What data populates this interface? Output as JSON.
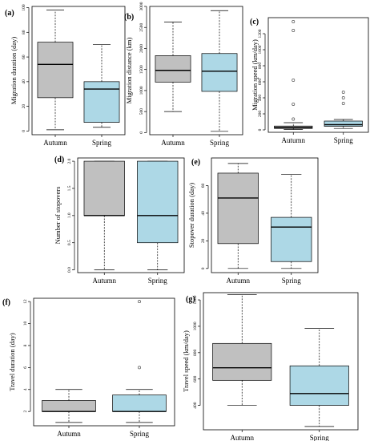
{
  "colors": {
    "autumn": "#c0c0c0",
    "spring": "#add8e6"
  },
  "chart_data": [
    {
      "panel": "(a)",
      "type": "boxplot",
      "ylabel": "Migration duration (day)",
      "categories": [
        "Autumn",
        "Spring"
      ],
      "ylim": [
        -3,
        101
      ],
      "yticks": [
        0,
        20,
        40,
        60,
        80,
        100
      ],
      "boxes": [
        {
          "category": "Autumn",
          "lower_whisker": 1,
          "q1": 27,
          "median": 54,
          "q3": 72,
          "upper_whisker": 98,
          "outliers": []
        },
        {
          "category": "Spring",
          "lower_whisker": 3,
          "q1": 7,
          "median": 34,
          "q3": 40,
          "upper_whisker": 70,
          "outliers": []
        }
      ]
    },
    {
      "panel": "(b)",
      "type": "boxplot",
      "ylabel": "Migration distance (km)",
      "categories": [
        "Autumn",
        "Spring"
      ],
      "ylim": [
        -50,
        3000
      ],
      "yticks": [
        0,
        500,
        1000,
        1500,
        2000,
        2500,
        3000
      ],
      "boxes": [
        {
          "category": "Autumn",
          "lower_whisker": 500,
          "q1": 1200,
          "median": 1480,
          "q3": 1830,
          "upper_whisker": 2630,
          "outliers": []
        },
        {
          "category": "Spring",
          "lower_whisker": 30,
          "q1": 980,
          "median": 1460,
          "q3": 1880,
          "upper_whisker": 2900,
          "outliers": []
        }
      ]
    },
    {
      "panel": "(c)",
      "type": "boxplot",
      "ylabel": "Migration speed (km/day)",
      "categories": [
        "Autumn",
        "Spring"
      ],
      "ylim": [
        -30,
        1400
      ],
      "yticks": [
        0,
        200,
        400,
        600,
        800,
        1000,
        1200
      ],
      "boxes": [
        {
          "category": "Autumn",
          "lower_whisker": 5,
          "q1": 18,
          "median": 30,
          "q3": 48,
          "upper_whisker": 90,
          "outliers": [
            135,
            320,
            620,
            1240,
            1350
          ]
        },
        {
          "category": "Spring",
          "lower_whisker": 18,
          "q1": 45,
          "median": 65,
          "q3": 110,
          "upper_whisker": 130,
          "outliers": [
            330,
            400,
            470
          ]
        }
      ]
    },
    {
      "panel": "(d)",
      "type": "boxplot",
      "ylabel": "Number of stopovers",
      "categories": [
        "Autumn",
        "Spring"
      ],
      "ylim": [
        -0.05,
        2.06
      ],
      "yticks": [
        0.0,
        0.5,
        1.0,
        1.5,
        2.0
      ],
      "ytick_labels": [
        "0.0",
        "0.5",
        "1.0",
        "1.5",
        "2.0"
      ],
      "boxes": [
        {
          "category": "Autumn",
          "lower_whisker": 0,
          "q1": 1,
          "median": 1,
          "q3": 2,
          "upper_whisker": 2,
          "outliers": []
        },
        {
          "category": "Spring",
          "lower_whisker": 0,
          "q1": 0.5,
          "median": 1,
          "q3": 2,
          "upper_whisker": 2,
          "outliers": []
        }
      ]
    },
    {
      "panel": "(e)",
      "type": "boxplot",
      "ylabel": "Stopover duration (day)",
      "categories": [
        "Autumn",
        "Spring"
      ],
      "ylim": [
        -3,
        80
      ],
      "yticks": [
        0,
        20,
        40,
        60
      ],
      "boxes": [
        {
          "category": "Autumn",
          "lower_whisker": 0,
          "q1": 18,
          "median": 51,
          "q3": 69,
          "upper_whisker": 76,
          "outliers": []
        },
        {
          "category": "Spring",
          "lower_whisker": 0,
          "q1": 5,
          "median": 30,
          "q3": 37,
          "upper_whisker": 68,
          "outliers": []
        }
      ]
    },
    {
      "panel": "(f)",
      "type": "boxplot",
      "ylabel": "Travel duration (day)",
      "categories": [
        "Autumn",
        "Spring"
      ],
      "ylim": [
        0.7,
        12.3
      ],
      "yticks": [
        2,
        4,
        6,
        8,
        10,
        12
      ],
      "boxes": [
        {
          "category": "Autumn",
          "lower_whisker": 1,
          "q1": 2,
          "median": 2,
          "q3": 3,
          "upper_whisker": 4,
          "outliers": []
        },
        {
          "category": "Spring",
          "lower_whisker": 1,
          "q1": 2,
          "median": 2,
          "q3": 3.5,
          "upper_whisker": 4,
          "outliers": [
            6,
            12
          ]
        }
      ]
    },
    {
      "panel": "(g)",
      "type": "boxplot",
      "ylabel": "Travel speed (km/day)",
      "categories": [
        "Autumn",
        "Spring"
      ],
      "ylim": [
        215,
        1255
      ],
      "yticks": [
        400,
        600,
        800,
        1000,
        1200
      ],
      "boxes": [
        {
          "category": "Autumn",
          "lower_whisker": 400,
          "q1": 590,
          "median": 685,
          "q3": 870,
          "upper_whisker": 1240,
          "outliers": []
        },
        {
          "category": "Spring",
          "lower_whisker": 240,
          "q1": 400,
          "median": 490,
          "q3": 700,
          "upper_whisker": 985,
          "outliers": []
        }
      ]
    }
  ]
}
